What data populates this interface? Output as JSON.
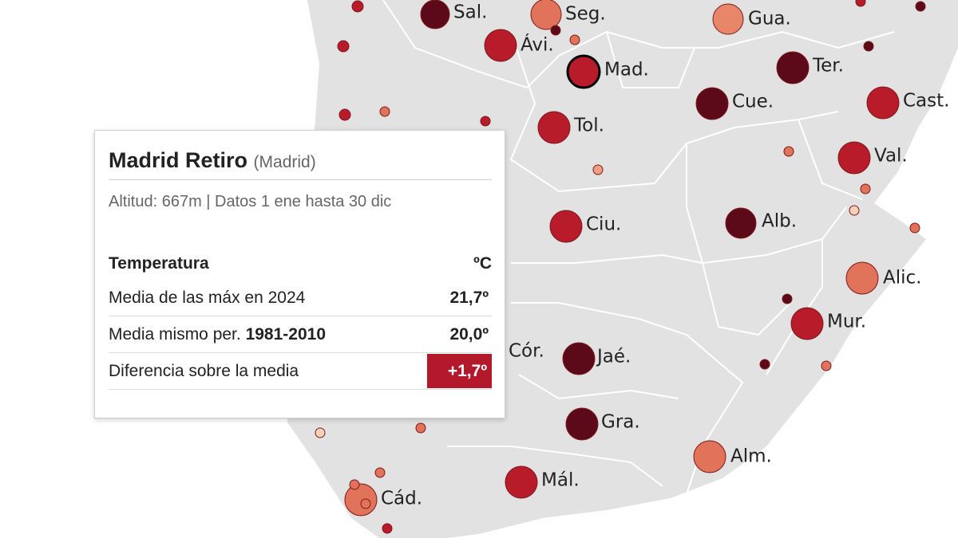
{
  "map": {
    "city_labels": [
      "Sal.",
      "Seg.",
      "Gua.",
      "Ávi.",
      "Mad.",
      "Ter.",
      "Cue.",
      "Cast.",
      "Tol.",
      "Val.",
      "Ciu.",
      "Alb.",
      "Alic.",
      "Mur.",
      "Cór.",
      "Jaé.",
      "Gra.",
      "Alm.",
      "Mál.",
      "Cád."
    ]
  },
  "tooltip": {
    "station": "Madrid Retiro",
    "province": "(Madrid)",
    "meta": "Altitud: 667m | Datos 1 ene hasta 30 dic",
    "header": {
      "label": "Temperatura",
      "unit": "ºC"
    },
    "rows": [
      {
        "label": "Media de las máx en 2024",
        "value": "21,7º"
      },
      {
        "label": "Media mismo per.",
        "label_bold": "1981-2010",
        "value": "20,0º"
      },
      {
        "label": "Diferencia sobre la media",
        "value": "+1,7º"
      }
    ]
  }
}
